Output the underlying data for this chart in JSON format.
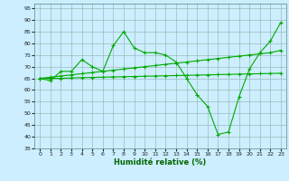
{
  "title": "",
  "xlabel": "Humidité relative (%)",
  "ylabel": "",
  "background_color": "#cceeff",
  "grid_color": "#99bbbb",
  "line_color": "#00aa00",
  "xlim": [
    -0.5,
    23.5
  ],
  "ylim": [
    35,
    97
  ],
  "yticks": [
    35,
    40,
    45,
    50,
    55,
    60,
    65,
    70,
    75,
    80,
    85,
    90,
    95
  ],
  "xticks": [
    0,
    1,
    2,
    3,
    4,
    5,
    6,
    7,
    8,
    9,
    10,
    11,
    12,
    13,
    14,
    15,
    16,
    17,
    18,
    19,
    20,
    21,
    22,
    23
  ],
  "series": [
    [
      65,
      64,
      68,
      68,
      73,
      70,
      68,
      79,
      85,
      78,
      76,
      76,
      75,
      72,
      65,
      58,
      53,
      41,
      42,
      57,
      69,
      76,
      81,
      89
    ],
    [
      65,
      65.5,
      66,
      66.5,
      67,
      67.5,
      68,
      68.5,
      69,
      69.5,
      70,
      70.5,
      71,
      71.5,
      72,
      72.5,
      73,
      73.5,
      74,
      74.5,
      75,
      75.5,
      76,
      77
    ],
    [
      65,
      65,
      65,
      65.2,
      65.3,
      65.4,
      65.5,
      65.6,
      65.7,
      65.8,
      65.9,
      66,
      66.1,
      66.2,
      66.3,
      66.4,
      66.5,
      66.6,
      66.7,
      66.8,
      66.9,
      67,
      67.1,
      67.2
    ]
  ]
}
